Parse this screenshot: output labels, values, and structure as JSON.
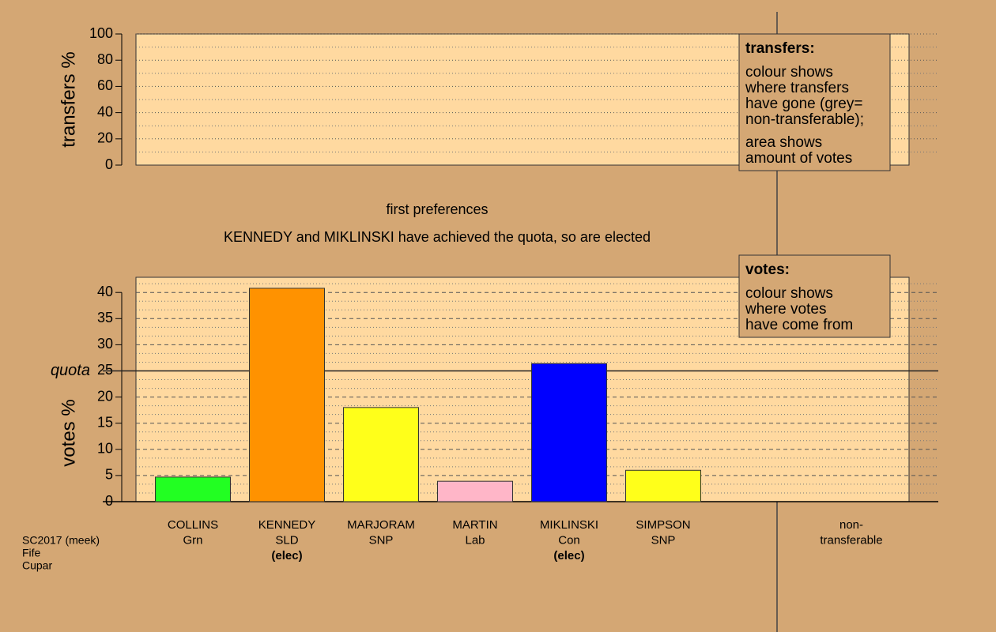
{
  "chart_data": [
    {
      "type": "bar",
      "ylabel": "transfers %",
      "ylim": [
        0,
        100
      ],
      "yticks": [
        0,
        20,
        40,
        60,
        80,
        100
      ],
      "grid": true,
      "minor_divisions": 2,
      "note": {
        "title": "transfers:",
        "paragraphs": [
          [
            "colour shows",
            "where transfers",
            "have gone (grey=",
            "non-transferable);"
          ],
          [
            "area shows",
            "amount of votes"
          ]
        ]
      }
    },
    {
      "type": "bar",
      "subtitle": "first preferences",
      "title": "KENNEDY and MIKLINSKI have achieved the quota, so are elected",
      "ylabel": "votes %",
      "ylim": [
        0,
        42.9
      ],
      "yticks": [
        0,
        5,
        10,
        15,
        20,
        25,
        30,
        35,
        40
      ],
      "grid": true,
      "minor_divisions": 3,
      "quota": {
        "value": 25,
        "label": "quota"
      },
      "categories": [
        [
          "COLLINS",
          "Grn"
        ],
        [
          "KENNEDY",
          "SLD",
          "(elec)"
        ],
        [
          "MARJORAM",
          "SNP"
        ],
        [
          "MARTIN",
          "Lab"
        ],
        [
          "MIKLINSKI",
          "Con",
          "(elec)"
        ],
        [
          "SIMPSON",
          "SNP"
        ],
        [
          "non-",
          "transferable"
        ]
      ],
      "values": [
        4.7,
        40.8,
        18.0,
        3.9,
        26.4,
        6.0,
        0
      ],
      "colors": [
        "#22ff22",
        "#ff9200",
        "#ffff1a",
        "#ffb6c8",
        "#0000ff",
        "#ffff1a",
        "#999999"
      ],
      "note": {
        "title": "votes:",
        "paragraphs": [
          [
            "colour shows",
            "where votes",
            "have come from"
          ]
        ]
      }
    }
  ],
  "footer": [
    "SC2017 (meek)",
    "Fife",
    "Cupar"
  ]
}
